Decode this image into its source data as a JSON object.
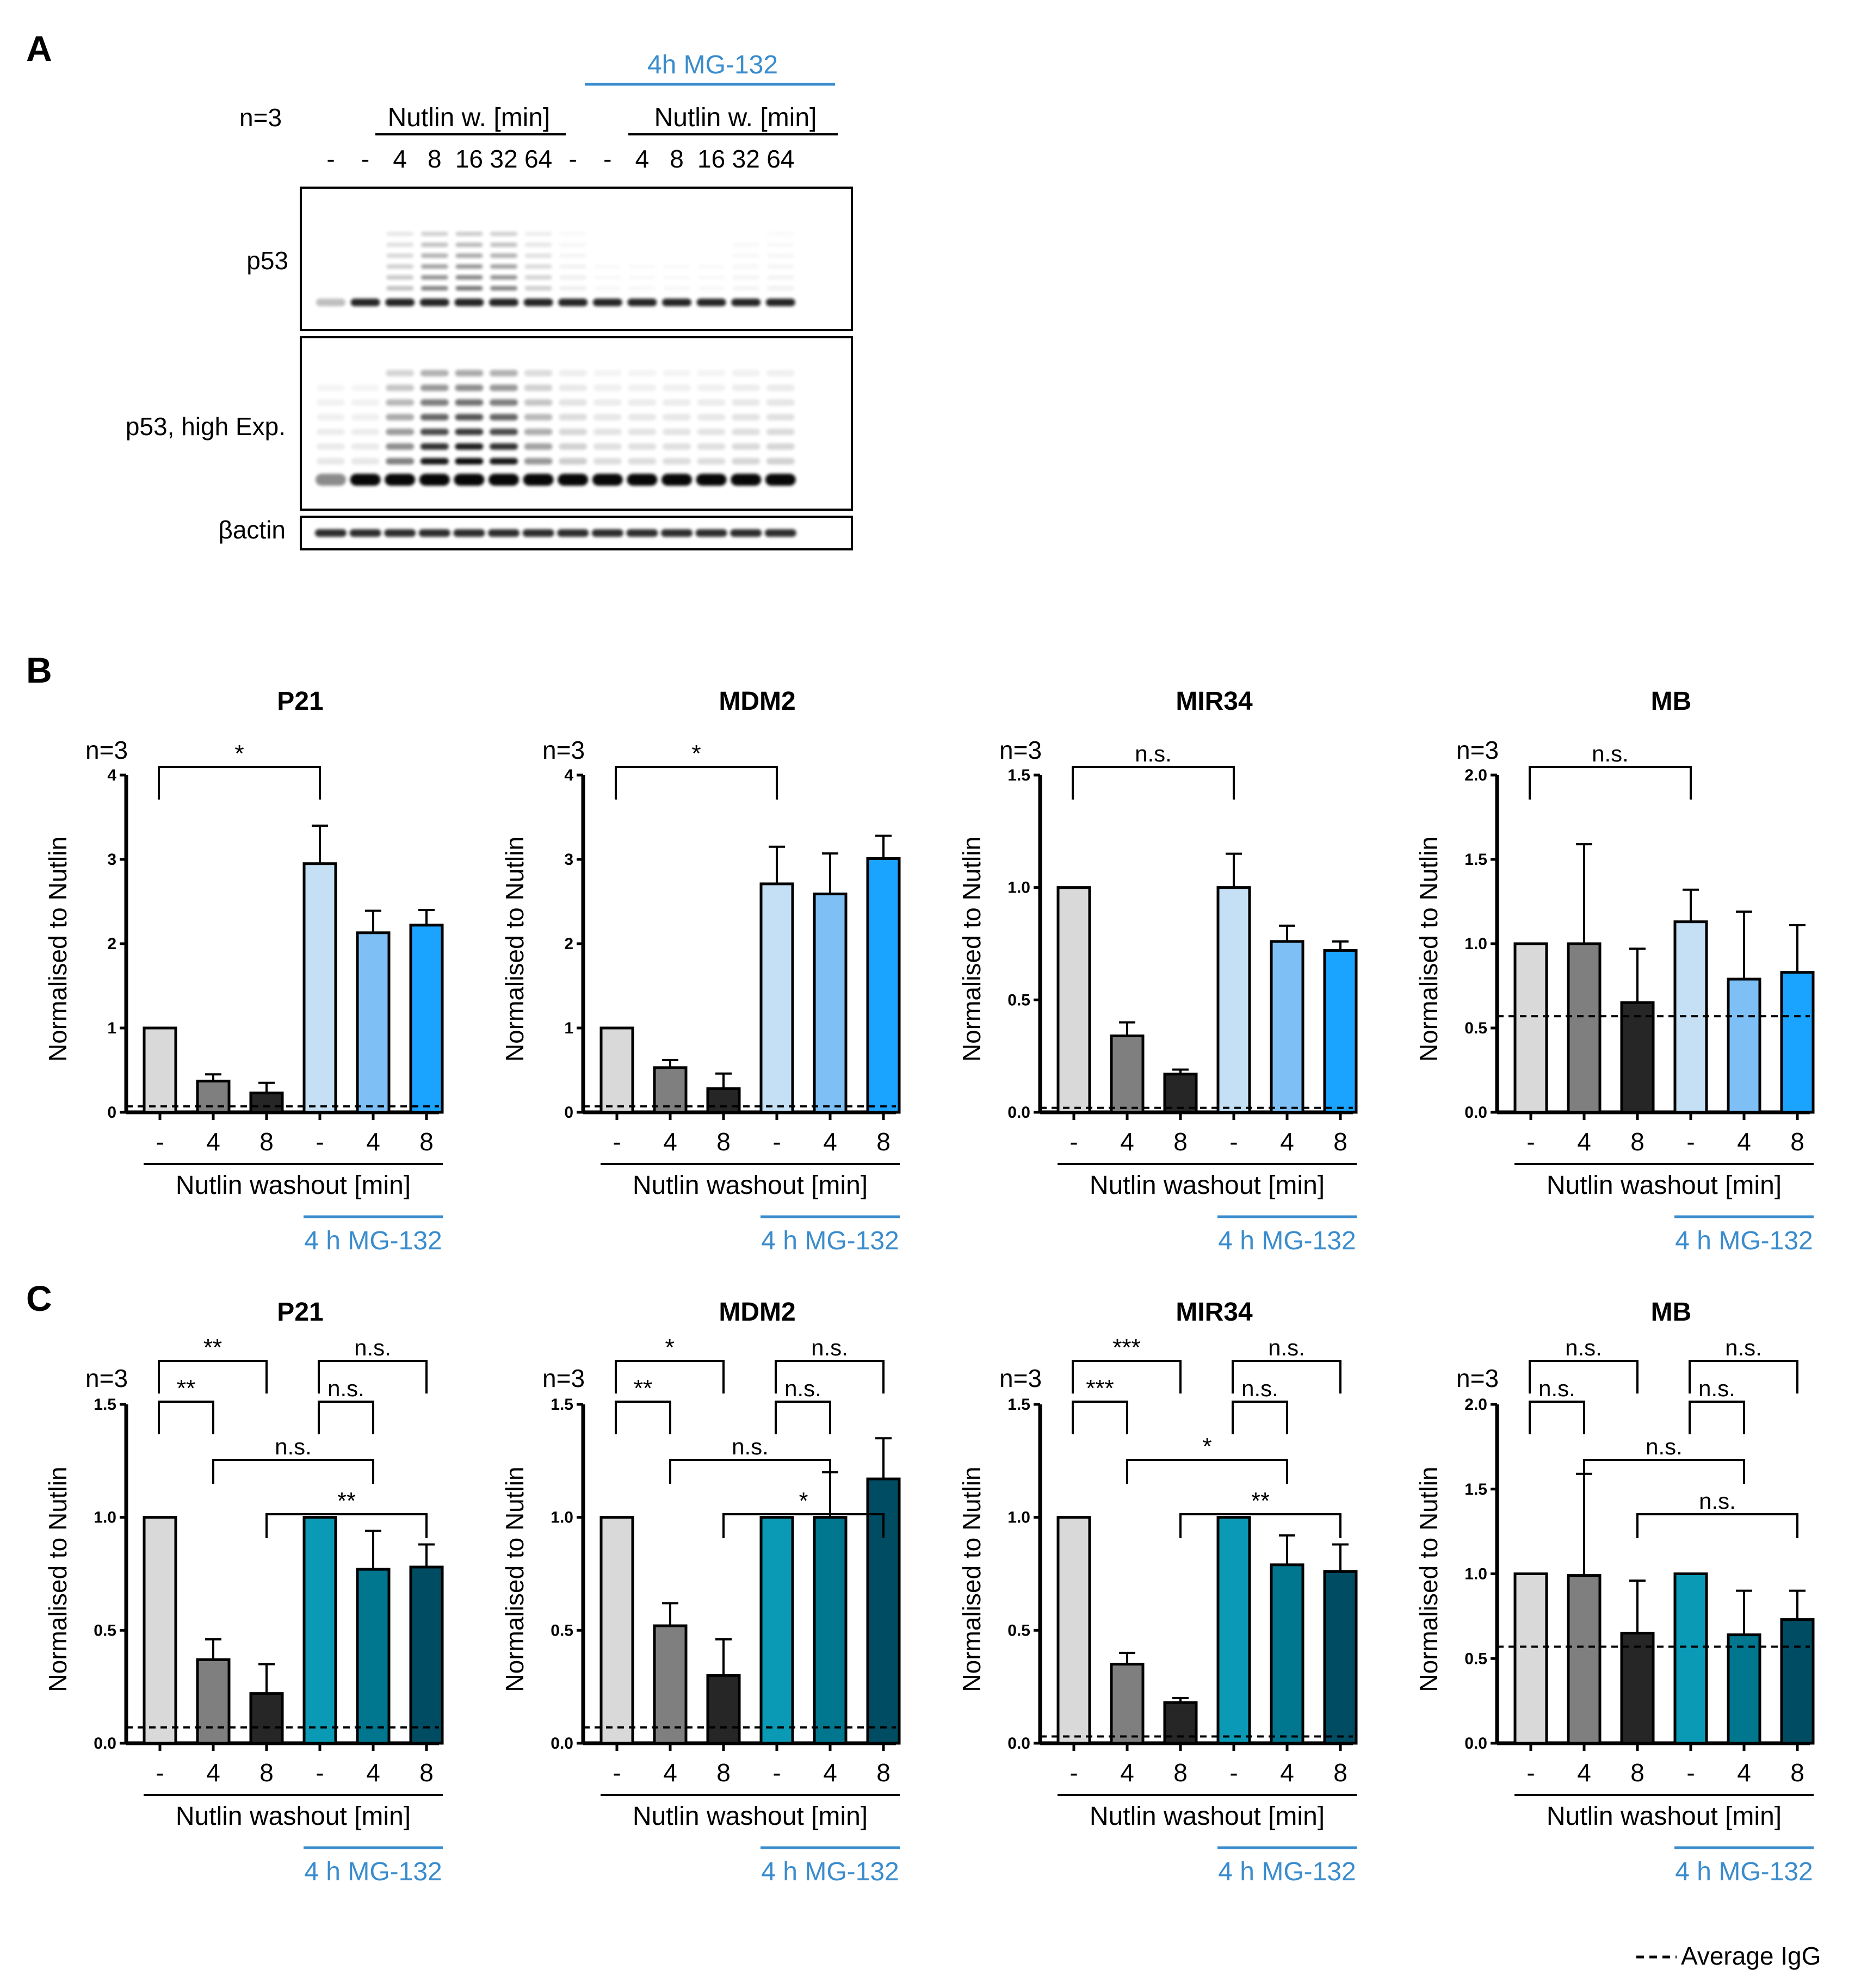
{
  "figure": {
    "panel_labels": [
      "A",
      "B",
      "C"
    ],
    "legend_label": "Average IgG"
  },
  "blot": {
    "n_label": "n=3",
    "mg_label": "4h MG-132",
    "group1_label": "Nutlin w. [min]",
    "group2_label": "Nutlin w. [min]",
    "lanes": [
      "-",
      "-",
      "4",
      "8",
      "16",
      "32",
      "64",
      "-",
      "-",
      "4",
      "8",
      "16",
      "32",
      "64"
    ],
    "rows": [
      {
        "label": "p53",
        "kind": "p53"
      },
      {
        "label": "p53, high Exp.",
        "kind": "p53high"
      },
      {
        "label": "βactin",
        "kind": "actin"
      }
    ],
    "ladder_intensity": [
      0,
      0,
      0.45,
      0.9,
      1.0,
      0.9,
      0.35,
      0.12,
      0.05,
      0.05,
      0.05,
      0.05,
      0.08,
      0.1
    ]
  },
  "chart_data": [
    {
      "type": "bar",
      "panel": "B",
      "title": "P21",
      "n_label": "n=3",
      "ylabel": "Normalised to Nutlin",
      "ylim": [
        0,
        4
      ],
      "yticks": [
        "0",
        "1",
        "2",
        "3",
        "4"
      ],
      "categories": [
        "-",
        "4",
        "8",
        "-",
        "4",
        "8"
      ],
      "values": [
        1.0,
        0.37,
        0.23,
        2.95,
        2.13,
        2.22
      ],
      "errors": [
        0,
        0.08,
        0.12,
        0.45,
        0.26,
        0.18
      ],
      "colors": [
        "#d9d9d9",
        "#7f7f7f",
        "#262626",
        "#c5e0f5",
        "#7ec0f5",
        "#1aa3ff"
      ],
      "igg": 0.07,
      "xlabel": "Nutlin washout [min]",
      "mg_label": "4 h MG-132",
      "brackets": [
        {
          "from": 0,
          "to": 3,
          "level": 0,
          "label": "*"
        }
      ]
    },
    {
      "type": "bar",
      "panel": "B",
      "title": "MDM2",
      "n_label": "n=3",
      "ylabel": "Normalised to Nutlin",
      "ylim": [
        0,
        4
      ],
      "yticks": [
        "0",
        "1",
        "2",
        "3",
        "4"
      ],
      "categories": [
        "-",
        "4",
        "8",
        "-",
        "4",
        "8"
      ],
      "values": [
        1.0,
        0.53,
        0.28,
        2.71,
        2.59,
        3.01
      ],
      "errors": [
        0,
        0.09,
        0.18,
        0.44,
        0.48,
        0.27
      ],
      "colors": [
        "#d9d9d9",
        "#7f7f7f",
        "#262626",
        "#c5e0f5",
        "#7ec0f5",
        "#1aa3ff"
      ],
      "igg": 0.07,
      "xlabel": "Nutlin washout [min]",
      "mg_label": "4 h MG-132",
      "brackets": [
        {
          "from": 0,
          "to": 3,
          "level": 0,
          "label": "*"
        }
      ]
    },
    {
      "type": "bar",
      "panel": "B",
      "title": "MIR34",
      "n_label": "n=3",
      "ylabel": "Normalised to Nutlin",
      "ylim": [
        0,
        1.5
      ],
      "yticks": [
        "0.0",
        "0.5",
        "1.0",
        "1.5"
      ],
      "categories": [
        "-",
        "4",
        "8",
        "-",
        "4",
        "8"
      ],
      "values": [
        1.0,
        0.34,
        0.17,
        1.0,
        0.76,
        0.72
      ],
      "errors": [
        0,
        0.06,
        0.02,
        0.15,
        0.07,
        0.04
      ],
      "colors": [
        "#d9d9d9",
        "#7f7f7f",
        "#262626",
        "#c5e0f5",
        "#7ec0f5",
        "#1aa3ff"
      ],
      "igg": 0.02,
      "xlabel": "Nutlin washout [min]",
      "mg_label": "4 h MG-132",
      "brackets": [
        {
          "from": 0,
          "to": 3,
          "level": 0,
          "label": "n.s."
        }
      ]
    },
    {
      "type": "bar",
      "panel": "B",
      "title": "MB",
      "n_label": "n=3",
      "ylabel": "Normalised to Nutlin",
      "ylim": [
        0,
        2.0
      ],
      "yticks": [
        "0.0",
        "0.5",
        "1.0",
        "1.5",
        "2.0"
      ],
      "categories": [
        "-",
        "4",
        "8",
        "-",
        "4",
        "8"
      ],
      "values": [
        1.0,
        1.0,
        0.65,
        1.13,
        0.79,
        0.83
      ],
      "errors": [
        0,
        0.59,
        0.32,
        0.19,
        0.4,
        0.28
      ],
      "colors": [
        "#d9d9d9",
        "#7f7f7f",
        "#262626",
        "#c5e0f5",
        "#7ec0f5",
        "#1aa3ff"
      ],
      "igg": 0.57,
      "xlabel": "Nutlin washout [min]",
      "mg_label": "4 h MG-132",
      "brackets": [
        {
          "from": 0,
          "to": 3,
          "level": 0,
          "label": "n.s."
        }
      ]
    },
    {
      "type": "bar",
      "panel": "C",
      "title": "P21",
      "n_label": "n=3",
      "ylabel": "Normalised to Nutlin",
      "ylim": [
        0,
        1.5
      ],
      "yticks": [
        "0.0",
        "0.5",
        "1.0",
        "1.5"
      ],
      "categories": [
        "-",
        "4",
        "8",
        "-",
        "4",
        "8"
      ],
      "values": [
        1.0,
        0.37,
        0.22,
        1.0,
        0.77,
        0.78
      ],
      "errors": [
        0,
        0.09,
        0.13,
        0,
        0.17,
        0.1
      ],
      "colors": [
        "#d9d9d9",
        "#7f7f7f",
        "#262626",
        "#0a9ab5",
        "#00768f",
        "#004d63"
      ],
      "igg": 0.07,
      "xlabel": "Nutlin washout [min]",
      "mg_label": "4 h MG-132",
      "brackets": [
        {
          "from": 0,
          "to": 1,
          "level": 0,
          "label": "**"
        },
        {
          "from": 0,
          "to": 2,
          "level": 1,
          "label": "**"
        },
        {
          "from": 3,
          "to": 4,
          "level": 0,
          "label": "n.s."
        },
        {
          "from": 3,
          "to": 5,
          "level": 1,
          "label": "n.s."
        },
        {
          "from": 1,
          "to": 4,
          "level": -1,
          "label": "n.s."
        },
        {
          "from": 2,
          "to": 5,
          "level": -2,
          "label": "**"
        }
      ]
    },
    {
      "type": "bar",
      "panel": "C",
      "title": "MDM2",
      "n_label": "n=3",
      "ylabel": "Normalised to Nutlin",
      "ylim": [
        0,
        1.5
      ],
      "yticks": [
        "0.0",
        "0.5",
        "1.0",
        "1.5"
      ],
      "categories": [
        "-",
        "4",
        "8",
        "-",
        "4",
        "8"
      ],
      "values": [
        1.0,
        0.52,
        0.3,
        1.0,
        1.0,
        1.17
      ],
      "errors": [
        0,
        0.1,
        0.16,
        0,
        0.2,
        0.18
      ],
      "colors": [
        "#d9d9d9",
        "#7f7f7f",
        "#262626",
        "#0a9ab5",
        "#00768f",
        "#004d63"
      ],
      "igg": 0.07,
      "xlabel": "Nutlin washout [min]",
      "mg_label": "4 h MG-132",
      "brackets": [
        {
          "from": 0,
          "to": 1,
          "level": 0,
          "label": "**"
        },
        {
          "from": 0,
          "to": 2,
          "level": 1,
          "label": "*"
        },
        {
          "from": 3,
          "to": 4,
          "level": 0,
          "label": "n.s."
        },
        {
          "from": 3,
          "to": 5,
          "level": 1,
          "label": "n.s."
        },
        {
          "from": 1,
          "to": 4,
          "level": -1,
          "label": "n.s."
        },
        {
          "from": 2,
          "to": 5,
          "level": -2,
          "label": "*"
        }
      ]
    },
    {
      "type": "bar",
      "panel": "C",
      "title": "MIR34",
      "n_label": "n=3",
      "ylabel": "Normalised to Nutlin",
      "ylim": [
        0,
        1.5
      ],
      "yticks": [
        "0.0",
        "0.5",
        "1.0",
        "1.5"
      ],
      "categories": [
        "-",
        "4",
        "8",
        "-",
        "4",
        "8"
      ],
      "values": [
        1.0,
        0.35,
        0.18,
        1.0,
        0.79,
        0.76
      ],
      "errors": [
        0,
        0.05,
        0.02,
        0,
        0.13,
        0.12
      ],
      "colors": [
        "#d9d9d9",
        "#7f7f7f",
        "#262626",
        "#0a9ab5",
        "#00768f",
        "#004d63"
      ],
      "igg": 0.03,
      "xlabel": "Nutlin washout [min]",
      "mg_label": "4 h MG-132",
      "brackets": [
        {
          "from": 0,
          "to": 1,
          "level": 0,
          "label": "***"
        },
        {
          "from": 0,
          "to": 2,
          "level": 1,
          "label": "***"
        },
        {
          "from": 3,
          "to": 4,
          "level": 0,
          "label": "n.s."
        },
        {
          "from": 3,
          "to": 5,
          "level": 1,
          "label": "n.s."
        },
        {
          "from": 1,
          "to": 4,
          "level": -1,
          "label": "*"
        },
        {
          "from": 2,
          "to": 5,
          "level": -2,
          "label": "**"
        }
      ]
    },
    {
      "type": "bar",
      "panel": "C",
      "title": "MB",
      "n_label": "n=3",
      "ylabel": "Normalised to Nutlin",
      "ylim": [
        0,
        2.0
      ],
      "yticks": [
        "0.0",
        "0.5",
        "1.0",
        "1.5",
        "2.0"
      ],
      "categories": [
        "-",
        "4",
        "8",
        "-",
        "4",
        "8"
      ],
      "values": [
        1.0,
        0.99,
        0.65,
        1.0,
        0.64,
        0.73
      ],
      "errors": [
        0,
        0.6,
        0.31,
        0,
        0.26,
        0.17
      ],
      "colors": [
        "#d9d9d9",
        "#7f7f7f",
        "#262626",
        "#0a9ab5",
        "#00768f",
        "#004d63"
      ],
      "igg": 0.57,
      "xlabel": "Nutlin washout [min]",
      "mg_label": "4 h MG-132",
      "brackets": [
        {
          "from": 0,
          "to": 1,
          "level": 0,
          "label": "n.s."
        },
        {
          "from": 0,
          "to": 2,
          "level": 1,
          "label": "n.s."
        },
        {
          "from": 3,
          "to": 4,
          "level": 0,
          "label": "n.s."
        },
        {
          "from": 3,
          "to": 5,
          "level": 1,
          "label": "n.s."
        },
        {
          "from": 1,
          "to": 4,
          "level": -1,
          "label": "n.s."
        },
        {
          "from": 2,
          "to": 5,
          "level": -2,
          "label": "n.s."
        }
      ]
    }
  ]
}
